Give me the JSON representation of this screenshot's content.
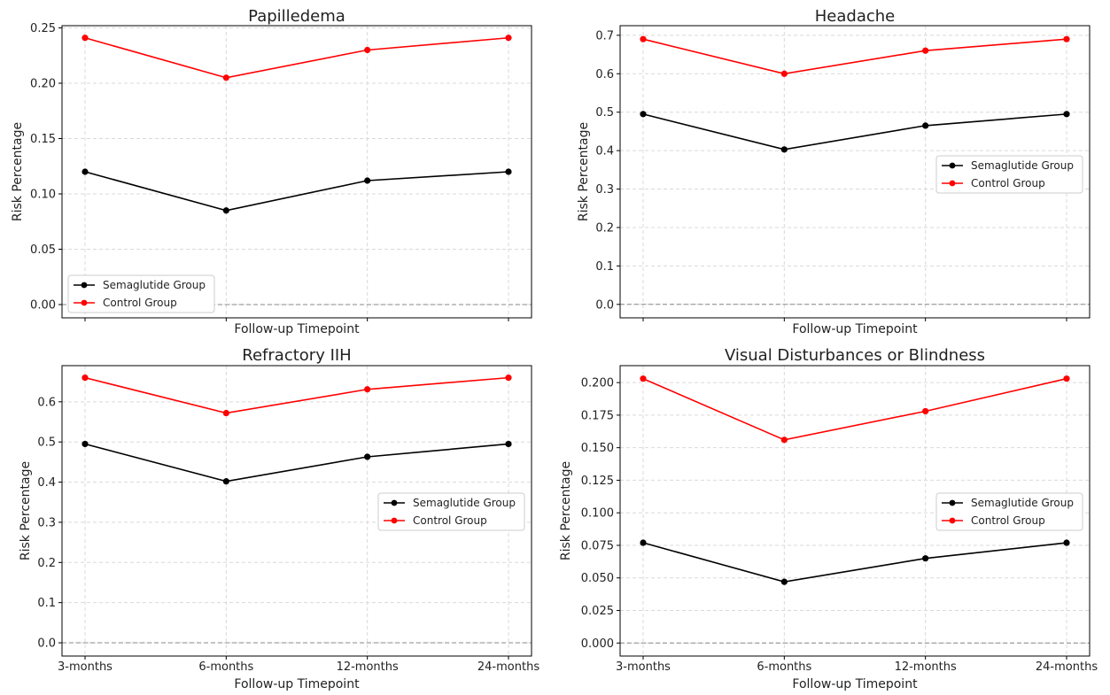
{
  "chart_data": [
    {
      "type": "line",
      "title": "Papilledema",
      "xlabel": "Follow-up Timepoint",
      "ylabel": "Risk Percentage",
      "categories": [
        "3-months",
        "6-months",
        "12-months",
        "24-months"
      ],
      "show_x_tick_labels": false,
      "ylim": [
        -0.012,
        0.252
      ],
      "yticks": [
        0.0,
        0.05,
        0.1,
        0.15,
        0.2,
        0.25
      ],
      "ytick_labels": [
        "0.00",
        "0.05",
        "0.10",
        "0.15",
        "0.20",
        "0.25"
      ],
      "zero_line": true,
      "grid": true,
      "legend": "lower-left",
      "series": [
        {
          "name": "Semaglutide Group",
          "color": "#000000",
          "values": [
            0.12,
            0.085,
            0.112,
            0.12
          ]
        },
        {
          "name": "Control Group",
          "color": "#ff0000",
          "values": [
            0.241,
            0.205,
            0.23,
            0.241
          ]
        }
      ]
    },
    {
      "type": "line",
      "title": "Headache",
      "xlabel": "Follow-up Timepoint",
      "ylabel": "Risk Percentage",
      "categories": [
        "3-months",
        "6-months",
        "12-months",
        "24-months"
      ],
      "show_x_tick_labels": false,
      "ylim": [
        -0.035,
        0.725
      ],
      "yticks": [
        0.0,
        0.1,
        0.2,
        0.3,
        0.4,
        0.5,
        0.6,
        0.7
      ],
      "ytick_labels": [
        "0.0",
        "0.1",
        "0.2",
        "0.3",
        "0.4",
        "0.5",
        "0.6",
        "0.7"
      ],
      "zero_line": true,
      "grid": true,
      "legend": "center-right",
      "series": [
        {
          "name": "Semaglutide Group",
          "color": "#000000",
          "values": [
            0.495,
            0.403,
            0.465,
            0.495
          ]
        },
        {
          "name": "Control Group",
          "color": "#ff0000",
          "values": [
            0.69,
            0.6,
            0.66,
            0.69
          ]
        }
      ]
    },
    {
      "type": "line",
      "title": "Refractory IIH",
      "xlabel": "Follow-up Timepoint",
      "ylabel": "Risk Percentage",
      "categories": [
        "3-months",
        "6-months",
        "12-months",
        "24-months"
      ],
      "show_x_tick_labels": true,
      "ylim": [
        -0.033,
        0.69
      ],
      "yticks": [
        0.0,
        0.1,
        0.2,
        0.3,
        0.4,
        0.5,
        0.6
      ],
      "ytick_labels": [
        "0.0",
        "0.1",
        "0.2",
        "0.3",
        "0.4",
        "0.5",
        "0.6"
      ],
      "zero_line": true,
      "grid": true,
      "legend": "center-right",
      "series": [
        {
          "name": "Semaglutide Group",
          "color": "#000000",
          "values": [
            0.495,
            0.402,
            0.463,
            0.495
          ]
        },
        {
          "name": "Control Group",
          "color": "#ff0000",
          "values": [
            0.66,
            0.572,
            0.631,
            0.66
          ]
        }
      ]
    },
    {
      "type": "line",
      "title": "Visual Disturbances or Blindness",
      "xlabel": "Follow-up Timepoint",
      "ylabel": "Risk Percentage",
      "categories": [
        "3-months",
        "6-months",
        "12-months",
        "24-months"
      ],
      "show_x_tick_labels": true,
      "ylim": [
        -0.01,
        0.213
      ],
      "yticks": [
        0.0,
        0.025,
        0.05,
        0.075,
        0.1,
        0.125,
        0.15,
        0.175,
        0.2
      ],
      "ytick_labels": [
        "0.000",
        "0.025",
        "0.050",
        "0.075",
        "0.100",
        "0.125",
        "0.150",
        "0.175",
        "0.200"
      ],
      "zero_line": true,
      "grid": true,
      "legend": "center-right",
      "series": [
        {
          "name": "Semaglutide Group",
          "color": "#000000",
          "values": [
            0.077,
            0.047,
            0.065,
            0.077
          ]
        },
        {
          "name": "Control Group",
          "color": "#ff0000",
          "values": [
            0.203,
            0.156,
            0.178,
            0.203
          ]
        }
      ]
    }
  ]
}
